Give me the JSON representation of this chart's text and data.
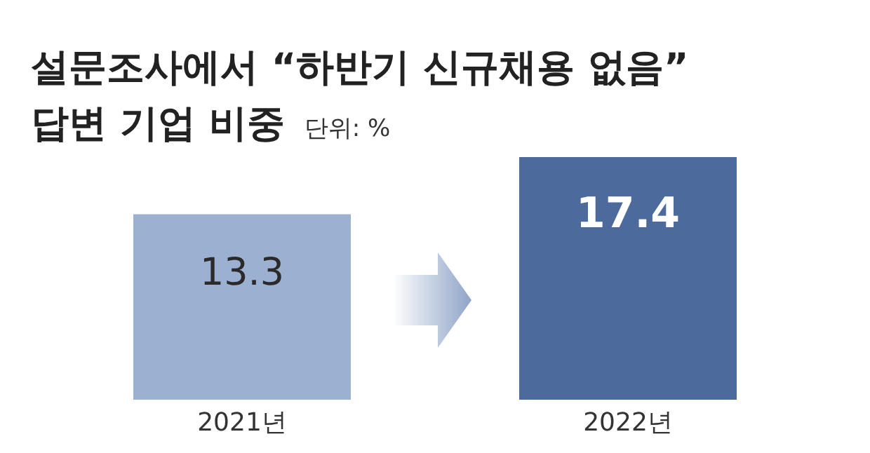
{
  "chart_data": {
    "type": "bar",
    "title": "설문조사에서 “하반기 신규채용 없음”\n답변 기업 비중",
    "subtitle": "단위: %",
    "categories": [
      "2021년",
      "2022년"
    ],
    "values": [
      13.3,
      17.4
    ],
    "colors": [
      "#9cb0d1",
      "#4d6a9d"
    ],
    "data_labels": true
  }
}
